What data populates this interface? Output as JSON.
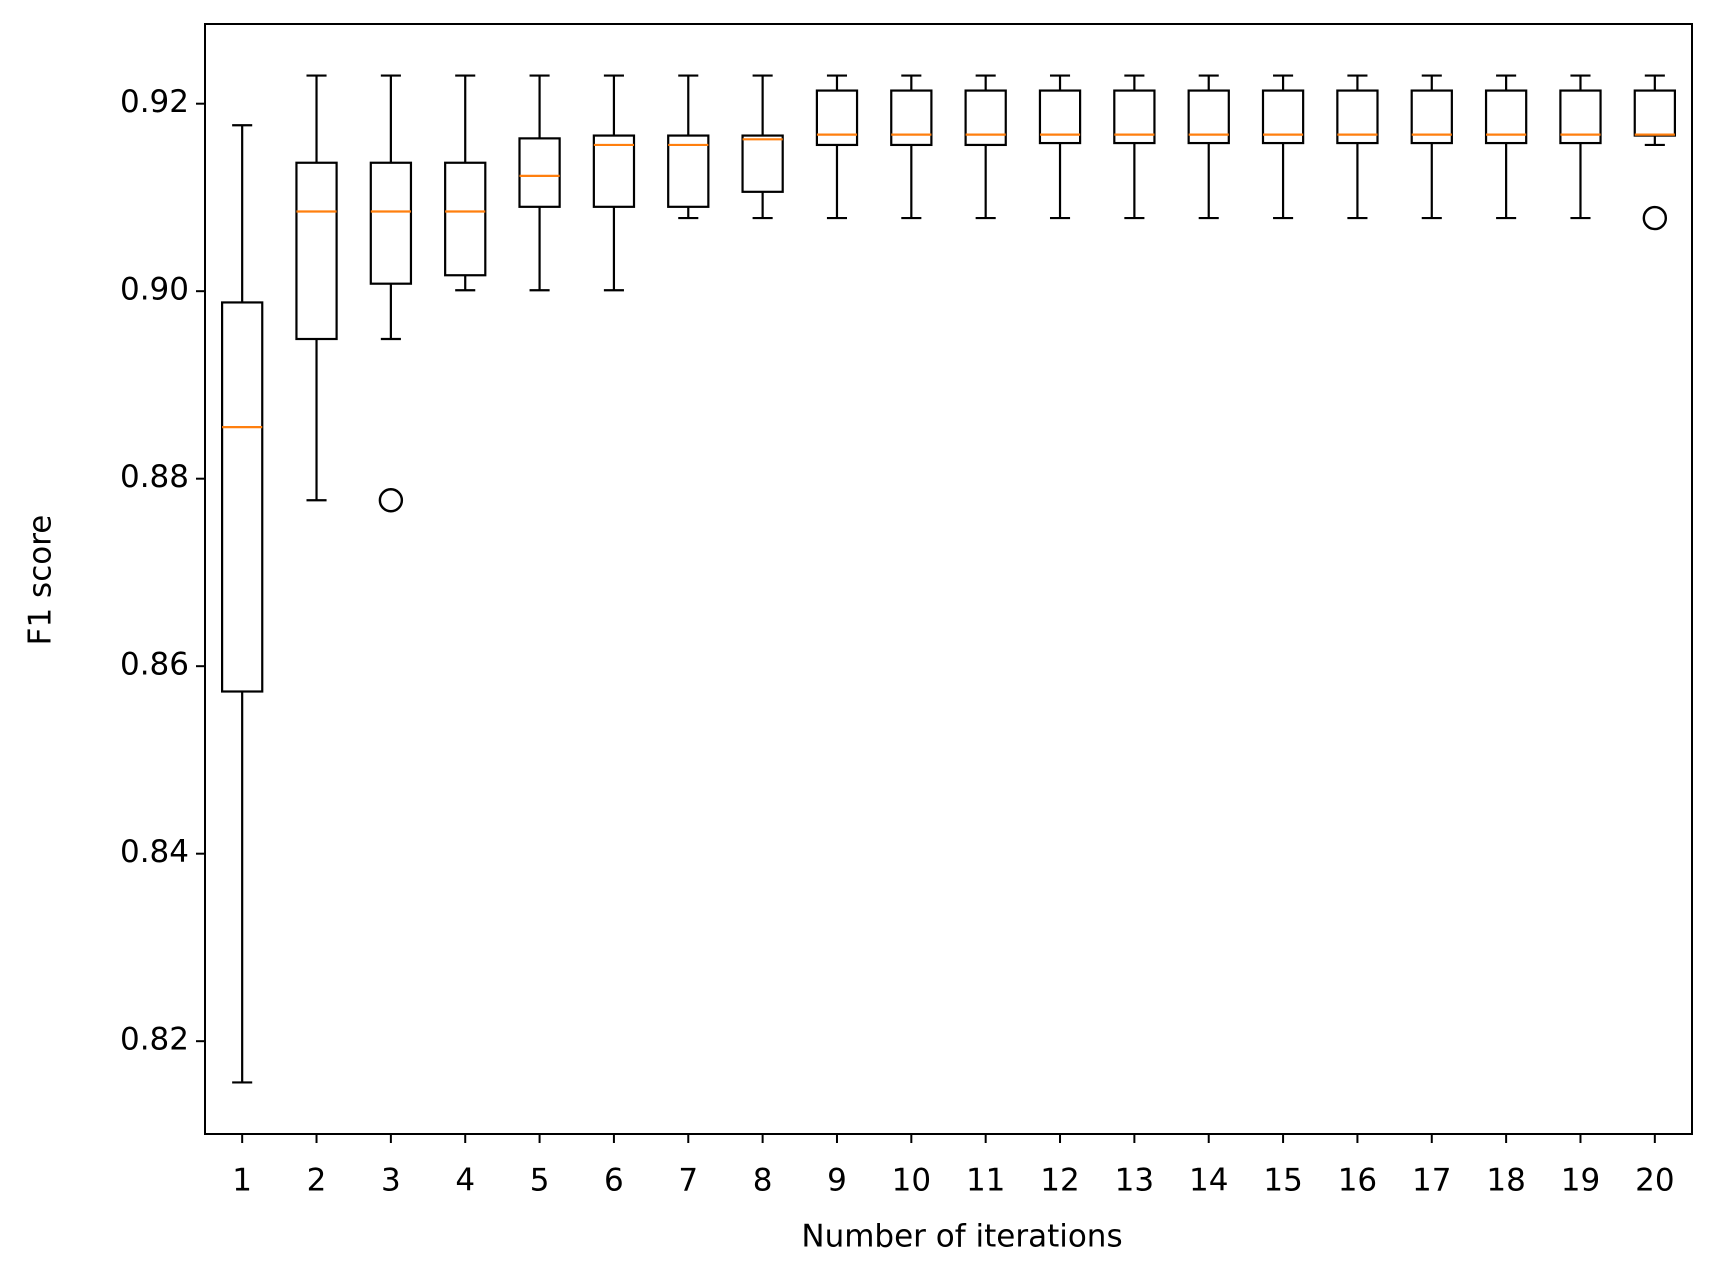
{
  "chart_data": {
    "type": "box",
    "x_label": "Number of iterations",
    "y_label": "F1 score",
    "categories": [
      "1",
      "2",
      "3",
      "4",
      "5",
      "6",
      "7",
      "8",
      "9",
      "10",
      "11",
      "12",
      "13",
      "14",
      "15",
      "16",
      "17",
      "18",
      "19",
      "20"
    ],
    "whisker_low": [
      0.8156,
      0.8777,
      0.8949,
      0.9001,
      0.9001,
      0.9001,
      0.9078,
      0.9078,
      0.9078,
      0.9078,
      0.9078,
      0.9078,
      0.9078,
      0.9078,
      0.9078,
      0.9078,
      0.9078,
      0.9078,
      0.9078,
      0.9156
    ],
    "q1": [
      0.8573,
      0.8949,
      0.9008,
      0.9017,
      0.909,
      0.909,
      0.909,
      0.9106,
      0.9156,
      0.9156,
      0.9156,
      0.9158,
      0.9158,
      0.9158,
      0.9158,
      0.9158,
      0.9158,
      0.9158,
      0.9158,
      0.9166
    ],
    "median": [
      0.8855,
      0.9085,
      0.9085,
      0.9085,
      0.9123,
      0.9156,
      0.9156,
      0.9162,
      0.9167,
      0.9167,
      0.9167,
      0.9167,
      0.9167,
      0.9167,
      0.9167,
      0.9167,
      0.9167,
      0.9167,
      0.9167,
      0.9167
    ],
    "q3": [
      0.8988,
      0.9137,
      0.9137,
      0.9137,
      0.9163,
      0.9166,
      0.9166,
      0.9166,
      0.9214,
      0.9214,
      0.9214,
      0.9214,
      0.9214,
      0.9214,
      0.9214,
      0.9214,
      0.9214,
      0.9214,
      0.9214,
      0.9214
    ],
    "whisker_high": [
      0.9177,
      0.923,
      0.923,
      0.923,
      0.923,
      0.923,
      0.923,
      0.923,
      0.923,
      0.923,
      0.923,
      0.923,
      0.923,
      0.923,
      0.923,
      0.923,
      0.923,
      0.923,
      0.923,
      0.923
    ],
    "outliers": [
      [],
      [],
      [
        0.8777
      ],
      [],
      [],
      [],
      [],
      [],
      [],
      [],
      [],
      [],
      [],
      [],
      [],
      [],
      [],
      [],
      [],
      [
        0.9078
      ]
    ],
    "color": "#000000",
    "median_color": "#ff7f0e",
    "ylim": [
      0.8101,
      0.9285
    ],
    "yticks": [
      0.82,
      0.84,
      0.86,
      0.88,
      {
        "value": 0.9,
        "label": "0.90"
      },
      0.92
    ],
    "grid": false
  }
}
